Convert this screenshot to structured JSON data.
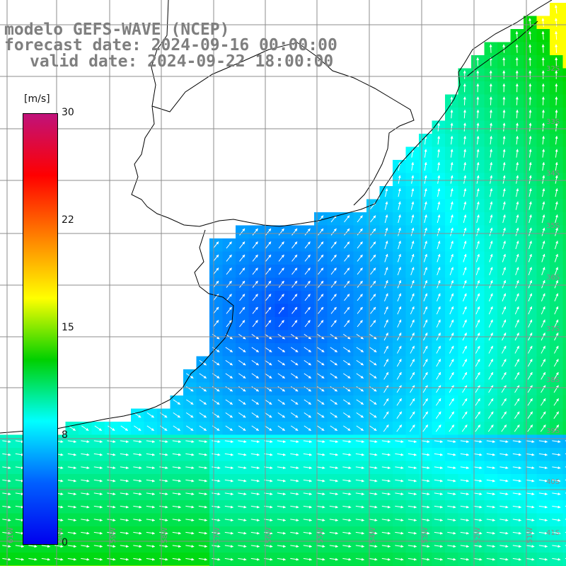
{
  "title": {
    "line1": "modelo GEFS-WAVE (NCEP)",
    "line2": "forecast date: 2024-09-16 00:00:00",
    "line3": "valid date: 2024-09-22 18:00:00"
  },
  "colorbar": {
    "unit": "[m/s]",
    "ticks": [
      "30",
      "22",
      "15",
      "8",
      "0"
    ],
    "gradient_colors": [
      "#c0127a",
      "#ff0000",
      "#ff8000",
      "#ffff00",
      "#00d000",
      "#00ffff",
      "#0060ff",
      "#0000ee"
    ]
  },
  "grid_labels": {
    "right": [
      "32S",
      "33S",
      "34S",
      "35S",
      "36S",
      "37S",
      "38S",
      "39S",
      "40S",
      "41S"
    ],
    "bottom": [
      "61W",
      "60W",
      "59W",
      "58W",
      "57W",
      "56W",
      "55W",
      "54W",
      "53W",
      "52W",
      "51W"
    ]
  },
  "field": {
    "variable": "wind speed and direction",
    "land_color": "#ffffff",
    "coastline_color": "#000000",
    "gridline_color": "#8c8c8c"
  }
}
